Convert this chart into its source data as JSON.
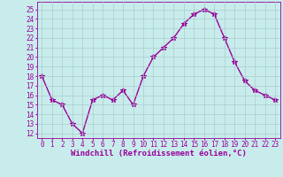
{
  "x": [
    0,
    1,
    2,
    3,
    4,
    5,
    6,
    7,
    8,
    9,
    10,
    11,
    12,
    13,
    14,
    15,
    16,
    17,
    18,
    19,
    20,
    21,
    22,
    23
  ],
  "y": [
    18,
    15.5,
    15,
    13,
    12,
    15.5,
    16,
    15.5,
    16.5,
    15,
    18,
    20,
    21,
    22,
    23.5,
    24.5,
    25,
    24.5,
    22,
    19.5,
    17.5,
    16.5,
    16,
    15.5
  ],
  "line_color": "#990099",
  "marker": "*",
  "marker_size": 4,
  "bg_color": "#c8ecec",
  "grid_color": "#aacccc",
  "xlabel": "Windchill (Refroidissement éolien,°C)",
  "xlabel_color": "#990099",
  "xlabel_fontsize": 6.5,
  "ylabel_ticks": [
    12,
    13,
    14,
    15,
    16,
    17,
    18,
    19,
    20,
    21,
    22,
    23,
    24,
    25
  ],
  "xticks": [
    0,
    1,
    2,
    3,
    4,
    5,
    6,
    7,
    8,
    9,
    10,
    11,
    12,
    13,
    14,
    15,
    16,
    17,
    18,
    19,
    20,
    21,
    22,
    23
  ],
  "ylim": [
    11.5,
    25.8
  ],
  "xlim": [
    -0.5,
    23.5
  ],
  "tick_fontsize": 5.5,
  "tick_color": "#990099",
  "spine_color": "#990099",
  "line_width": 1.0
}
